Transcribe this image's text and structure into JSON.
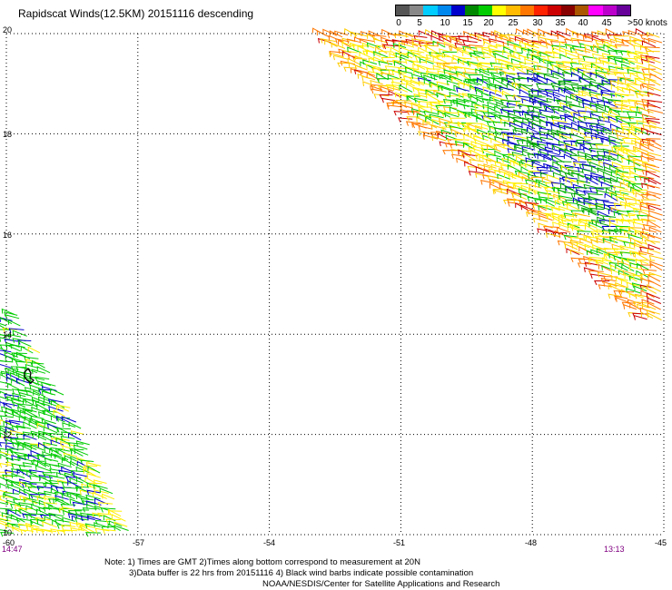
{
  "title": "Rapidscat Winds(12.5KM) 20151116 descending",
  "colorbar": {
    "colors": [
      "#555555",
      "#888888",
      "#00ccff",
      "#0088ee",
      "#0000cc",
      "#008800",
      "#00cc00",
      "#ffff00",
      "#ffbb00",
      "#ff7700",
      "#ff2200",
      "#cc0000",
      "#880000",
      "#aa5500",
      "#ff00ff",
      "#bb00cc",
      "#660099"
    ],
    "labels": [
      "0",
      "5",
      "10",
      "15",
      "20",
      "25",
      "30",
      "35",
      "40",
      "45",
      ">50 knots"
    ]
  },
  "axes": {
    "lon_ticks": [
      "-60",
      "-57",
      "-54",
      "-51",
      "-48",
      "-45"
    ],
    "lat_ticks": [
      "20",
      "18",
      "16",
      "14",
      "12",
      "10"
    ],
    "lon_range": [
      -60,
      -45
    ],
    "lat_range": [
      10,
      20
    ],
    "grid": true
  },
  "times": {
    "left": "14:47",
    "right": "13:13"
  },
  "notes": {
    "line1": "Note: 1) Times are GMT 2)Times along bottom correspond to measurement at 20N",
    "line2": "3)Data buffer is 22 hrs from 20151116 4) Black wind barbs indicate possible contamination",
    "line3": "NOAA/NESDIS/Center for Satellite Applications and Research"
  },
  "swaths": [
    {
      "name": "east",
      "polygon": [
        [
          -52.9,
          20
        ],
        [
          -45,
          20
        ],
        [
          -45,
          14.2
        ],
        [
          -45.4,
          14.3
        ],
        [
          -48,
          16.4
        ],
        [
          -51.2,
          18.6
        ],
        [
          -52.4,
          19.6
        ]
      ]
    },
    {
      "name": "west",
      "polygon": [
        [
          -60,
          14.6
        ],
        [
          -59.8,
          14.5
        ],
        [
          -58.3,
          12.2
        ],
        [
          -57.4,
          10.6
        ],
        [
          -57.1,
          10
        ],
        [
          -60,
          10
        ]
      ]
    }
  ]
}
